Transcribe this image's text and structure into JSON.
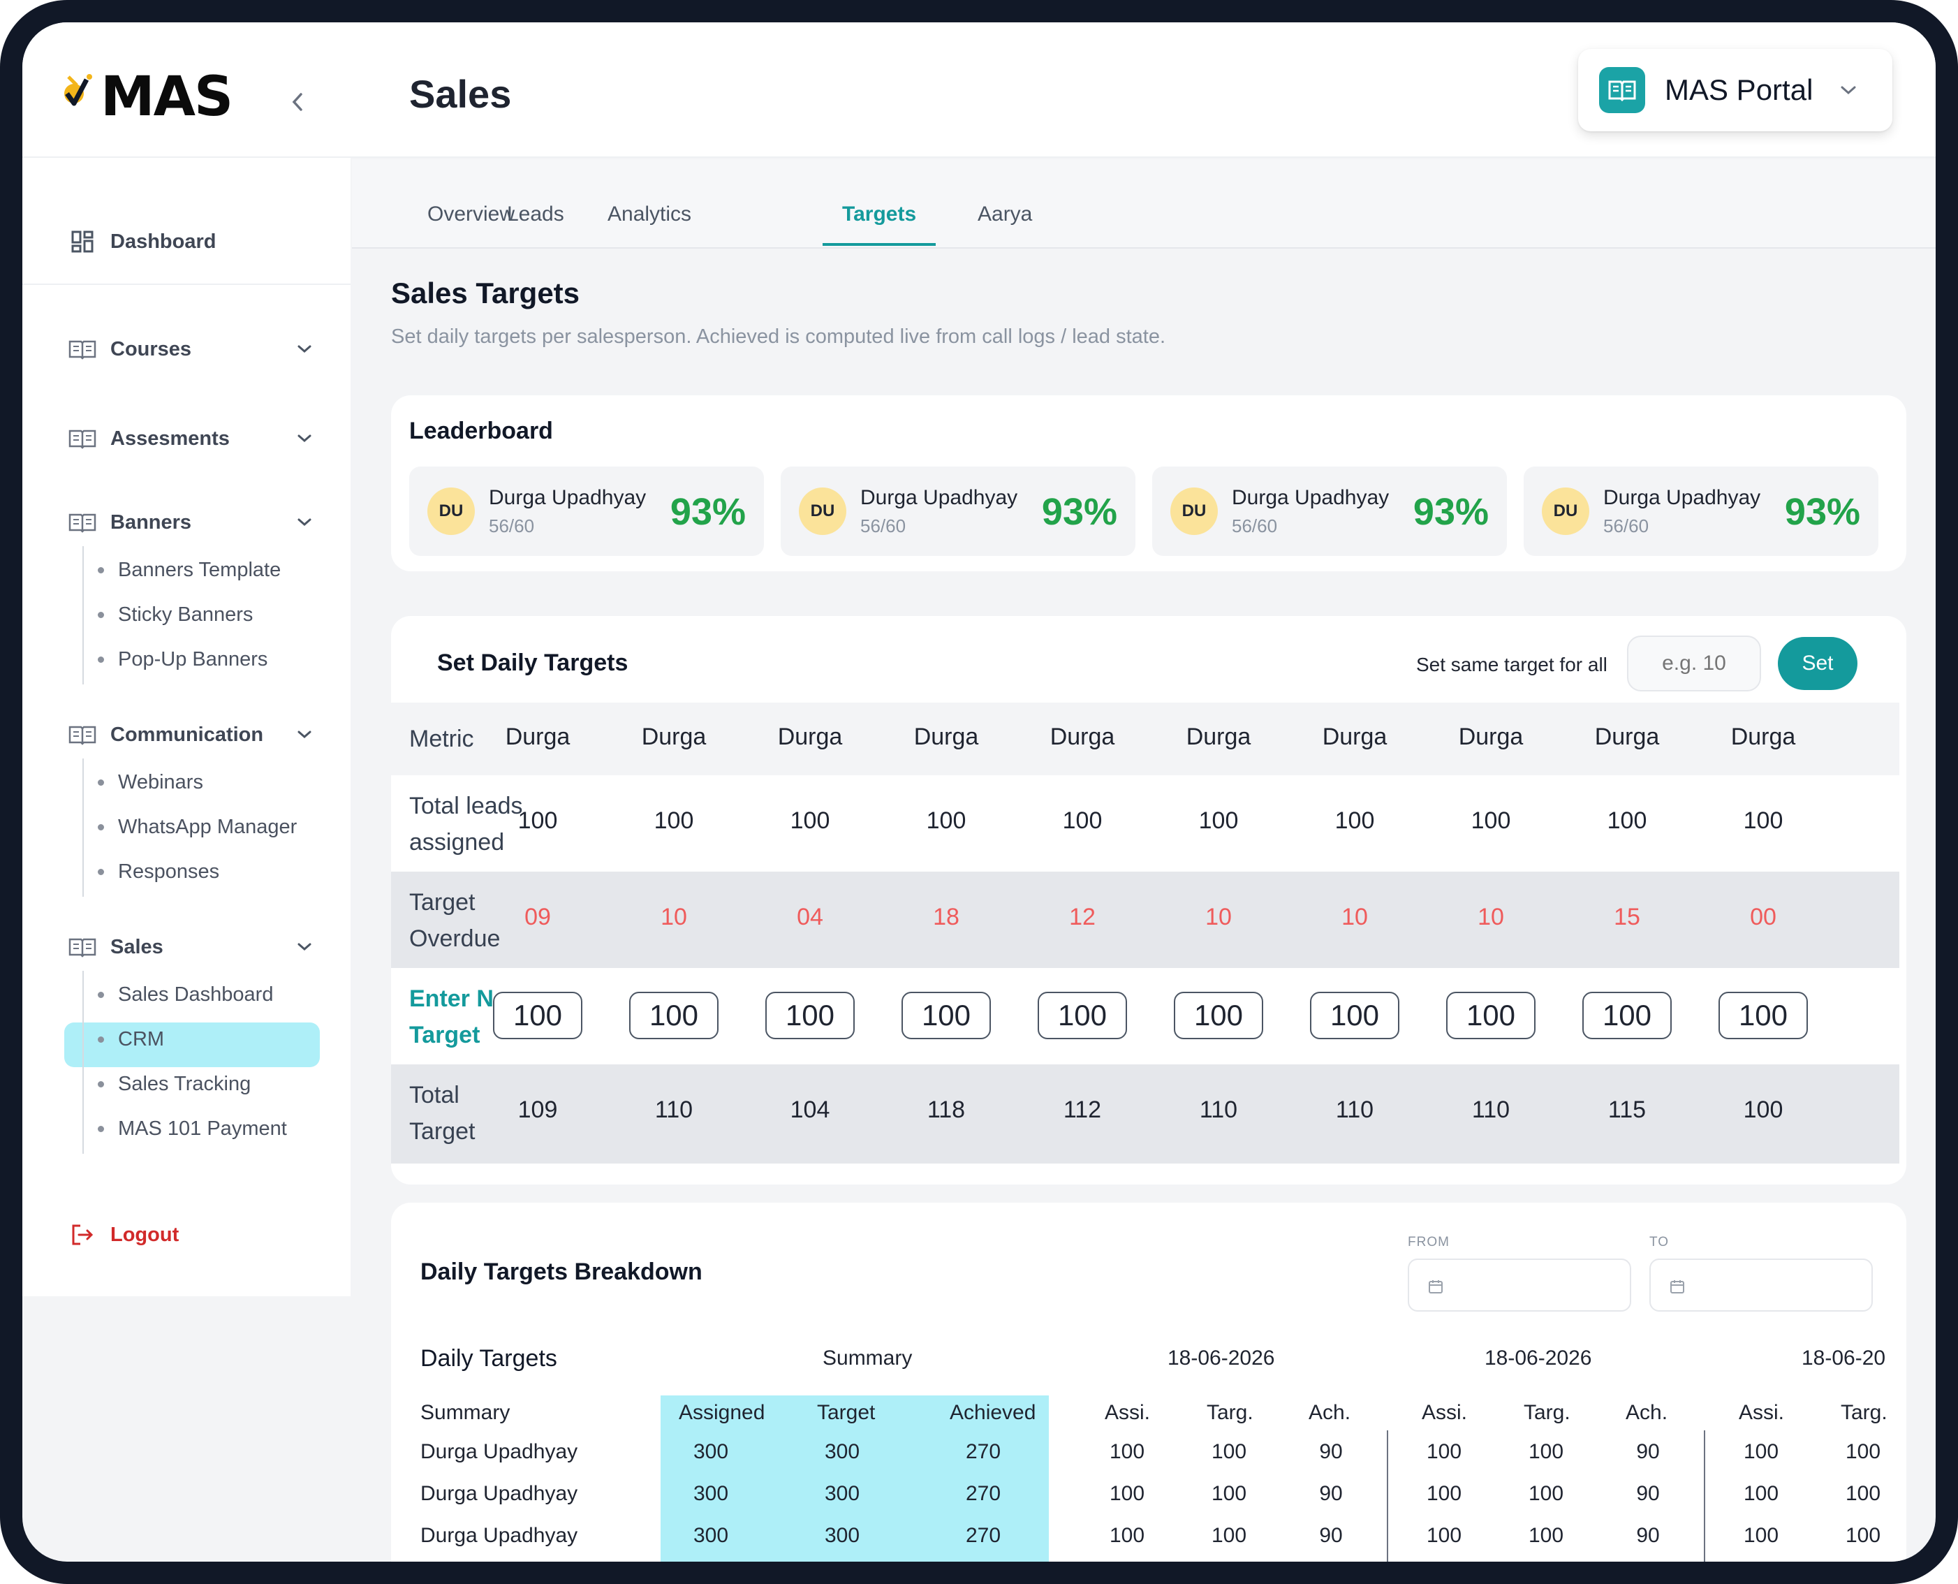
{
  "brand": {
    "logo_text": "MAS"
  },
  "header": {
    "title": "Sales",
    "portal_label": "MAS Portal"
  },
  "sidebar": {
    "dashboard": "Dashboard",
    "courses": "Courses",
    "assesments": "Assesments",
    "banners": "Banners",
    "banners_children": [
      "Banners Template",
      "Sticky Banners",
      "Pop-Up Banners"
    ],
    "communication": "Communication",
    "communication_children": [
      "Webinars",
      "WhatsApp Manager",
      "Responses"
    ],
    "sales": "Sales",
    "sales_children": [
      "Sales Dashboard",
      "CRM",
      "Sales Tracking",
      "MAS 101 Payment"
    ],
    "active_child": "CRM",
    "logout": "Logout"
  },
  "tabs": [
    "Overview",
    "Leads",
    "Analytics",
    "Targets",
    "Aarya"
  ],
  "active_tab": "Targets",
  "page": {
    "title": "Sales Targets",
    "subtitle": "Set daily targets per salesperson. Achieved is computed live from call logs / lead state."
  },
  "leaderboard": {
    "title": "Leaderboard",
    "items": [
      {
        "initials": "DU",
        "name": "Durga Upadhyay",
        "score": "56/60",
        "pct": "93%"
      },
      {
        "initials": "DU",
        "name": "Durga Upadhyay",
        "score": "56/60",
        "pct": "93%"
      },
      {
        "initials": "DU",
        "name": "Durga Upadhyay",
        "score": "56/60",
        "pct": "93%"
      },
      {
        "initials": "DU",
        "name": "Durga Upadhyay",
        "score": "56/60",
        "pct": "93%"
      }
    ]
  },
  "daily_targets": {
    "title": "Set Daily Targets",
    "same_label": "Set same target for all",
    "input_placeholder": "e.g. 10",
    "set_button": "Set",
    "metric_header": "Metric",
    "columns": [
      "Durga",
      "Durga",
      "Durga",
      "Durga",
      "Durga",
      "Durga",
      "Durga",
      "Durga",
      "Durga",
      "Durga"
    ],
    "rows": {
      "leads_label": [
        "Total leads",
        "assigned"
      ],
      "leads": [
        "100",
        "100",
        "100",
        "100",
        "100",
        "100",
        "100",
        "100",
        "100",
        "100"
      ],
      "overdue_label": [
        "Target",
        "Overdue"
      ],
      "overdue": [
        "09",
        "10",
        "04",
        "18",
        "12",
        "10",
        "10",
        "10",
        "15",
        "00"
      ],
      "new_label": [
        "Enter New",
        "Target"
      ],
      "new_values": [
        "100",
        "100",
        "100",
        "100",
        "100",
        "100",
        "100",
        "100",
        "100",
        "100"
      ],
      "total_label": [
        "Total",
        "Target"
      ],
      "total": [
        "109",
        "110",
        "104",
        "118",
        "112",
        "110",
        "110",
        "110",
        "115",
        "100"
      ]
    }
  },
  "breakdown": {
    "title": "Daily Targets Breakdown",
    "from_label": "FROM",
    "to_label": "TO",
    "section_label": "Daily Targets",
    "summary_group": "Summary",
    "dates": [
      "18-06-2026",
      "18-06-2026",
      "18-06-20"
    ],
    "row_header": "Summary",
    "summary_cols": [
      "Assigned",
      "Target",
      "Achieved"
    ],
    "day_cols": [
      "Assi.",
      "Targ.",
      "Ach."
    ],
    "rows": [
      {
        "name": "Durga Upadhyay",
        "summary": [
          "300",
          "300",
          "270"
        ],
        "day": [
          "100",
          "100",
          "90"
        ]
      },
      {
        "name": "Durga Upadhyay",
        "summary": [
          "300",
          "300",
          "270"
        ],
        "day": [
          "100",
          "100",
          "90"
        ]
      },
      {
        "name": "Durga Upadhyay",
        "summary": [
          "300",
          "300",
          "270"
        ],
        "day": [
          "100",
          "100",
          "90"
        ]
      }
    ]
  },
  "colors": {
    "accent": "#149a9c",
    "highlight": "#aeeff8",
    "success": "#22a34a",
    "danger": "#ef5b5b",
    "logout": "#d12a2a"
  }
}
